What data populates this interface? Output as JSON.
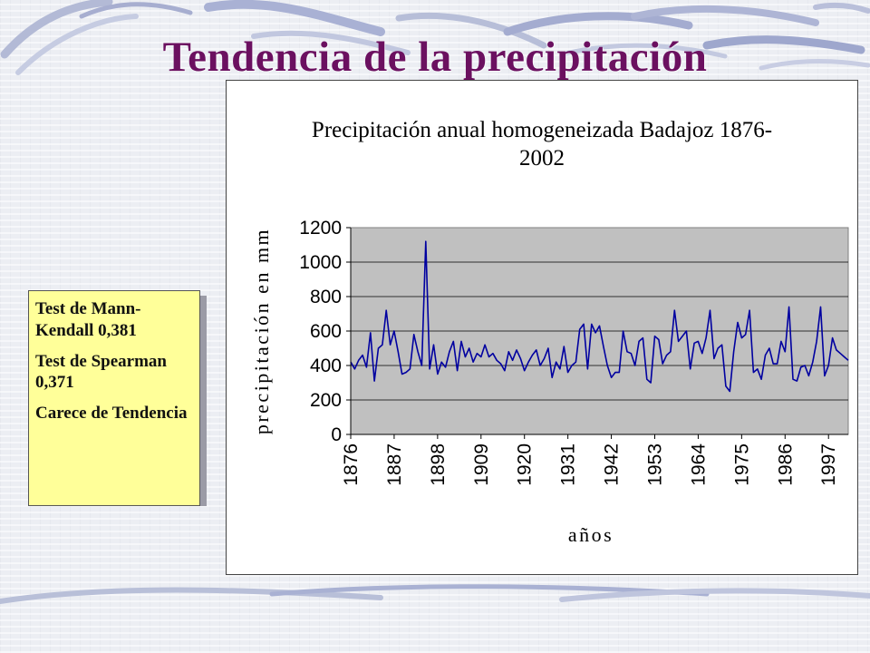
{
  "slide": {
    "title": "Tendencia de la precipitación"
  },
  "stats_box": {
    "mann_kendall": "Test de Mann-Kendall 0,381",
    "spearman": "Test de Spearman 0,371",
    "conclusion": "Carece de Tendencia"
  },
  "colors": {
    "title": "#6b1060",
    "plot_bg": "#c0c0c0",
    "series_line": "#0000a0",
    "stats_box_bg": "#ffff99"
  },
  "chart_data": {
    "type": "line",
    "title_line1": "Precipitación anual homogeneizada Badajoz 1876-",
    "title_line2": "2002",
    "xlabel": "años",
    "ylabel": "precipitación en mm",
    "ylim": [
      0,
      1200
    ],
    "yticks": [
      "0",
      "200",
      "400",
      "600",
      "800",
      "1000",
      "1200"
    ],
    "xticks": [
      "1876",
      "1887",
      "1898",
      "1909",
      "1920",
      "1931",
      "1942",
      "1953",
      "1964",
      "1975",
      "1986",
      "1997"
    ],
    "x_start": 1876,
    "x_end": 2002,
    "grid": "horizontal",
    "legend": "none",
    "series": [
      {
        "values": [
          420,
          380,
          430,
          460,
          390,
          590,
          310,
          500,
          520,
          720,
          520,
          600,
          480,
          350,
          360,
          380,
          580,
          480,
          400,
          1120,
          380,
          520,
          350,
          420,
          390,
          480,
          540,
          370,
          540,
          450,
          500,
          420,
          470,
          450,
          520,
          450,
          470,
          430,
          410,
          370,
          480,
          430,
          490,
          440,
          370,
          420,
          460,
          490,
          400,
          440,
          500,
          330,
          420,
          380,
          510,
          360,
          400,
          420,
          610,
          640,
          380,
          640,
          590,
          630,
          510,
          400,
          330,
          360,
          360,
          600,
          480,
          470,
          400,
          540,
          560,
          320,
          300,
          570,
          550,
          410,
          460,
          480,
          720,
          540,
          570,
          600,
          380,
          530,
          540,
          470,
          560,
          720,
          440,
          500,
          520,
          280,
          250,
          480,
          650,
          560,
          580,
          720,
          360,
          380,
          320,
          460,
          500,
          410,
          410,
          540,
          480,
          740,
          320,
          310,
          390,
          400,
          340,
          420,
          540,
          740,
          340,
          400,
          560,
          490,
          470,
          450,
          430
        ]
      }
    ]
  }
}
